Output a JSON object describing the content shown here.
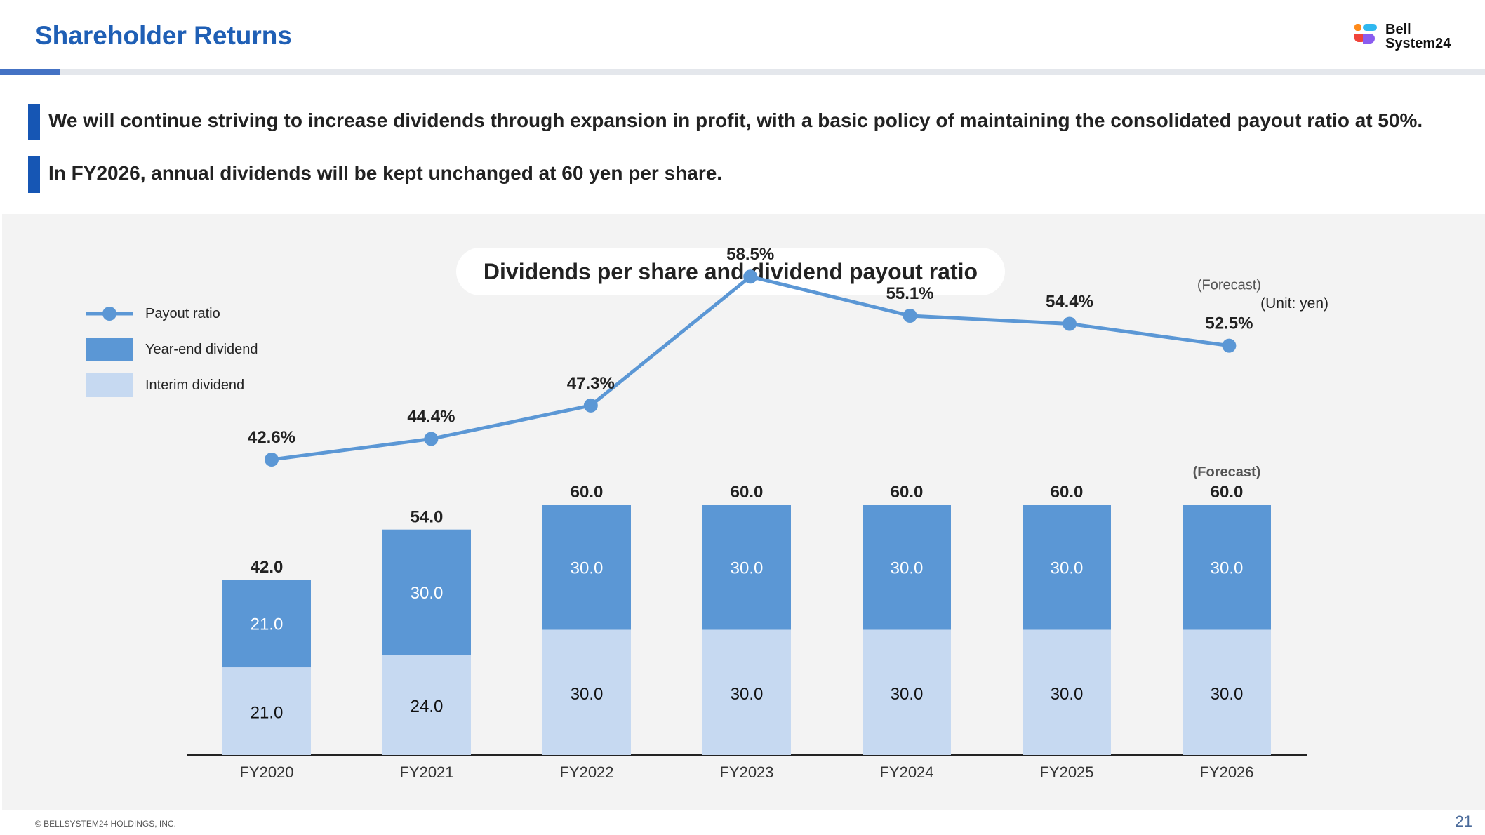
{
  "header": {
    "title": "Shareholder Returns",
    "logo_text_line1": "Bell",
    "logo_text_line2": "System24"
  },
  "messages": [
    "We will continue striving to increase dividends through expansion in profit, with a basic policy of maintaining the consolidated payout ratio at 50%.",
    "In FY2026, annual dividends will be kept unchanged at 60 yen per share."
  ],
  "chart_data": {
    "type": "bar",
    "title": "Dividends per share and dividend payout ratio",
    "unit": "(Unit: yen)",
    "categories": [
      "FY2020",
      "FY2021",
      "FY2022",
      "FY2023",
      "FY2024",
      "FY2025",
      "FY2026"
    ],
    "stacked": true,
    "series": [
      {
        "name": "Interim dividend",
        "type": "bar",
        "color": "#c6d9f1",
        "values": [
          21.0,
          24.0,
          30.0,
          30.0,
          30.0,
          30.0,
          30.0
        ]
      },
      {
        "name": "Year-end dividend",
        "type": "bar",
        "color": "#5b97d5",
        "values": [
          21.0,
          30.0,
          30.0,
          30.0,
          30.0,
          30.0,
          30.0
        ]
      },
      {
        "name": "Payout ratio",
        "type": "line",
        "color": "#5b97d5",
        "unit": "%",
        "values": [
          42.6,
          44.4,
          47.3,
          58.5,
          55.1,
          54.4,
          52.5
        ]
      }
    ],
    "totals": [
      42.0,
      54.0,
      60.0,
      60.0,
      60.0,
      60.0,
      60.0
    ],
    "forecast_label": "(Forecast)",
    "forecast_category": "FY2026",
    "legend": [
      "Payout ratio",
      "Year-end dividend",
      "Interim dividend"
    ],
    "legend_position": "top-left",
    "grid": false
  },
  "footer": {
    "copyright": "© BELLSYSTEM24 HOLDINGS, INC.",
    "page_number": "21"
  }
}
